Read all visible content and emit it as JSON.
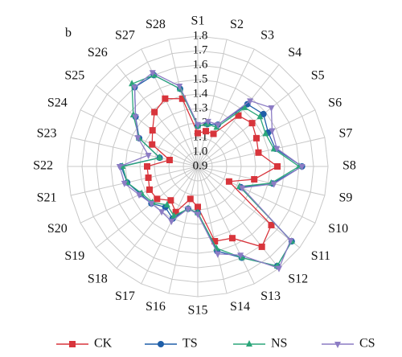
{
  "chart_data": {
    "type": "radar",
    "panel_label": "b",
    "categories": [
      "S1",
      "S2",
      "S3",
      "S4",
      "S5",
      "S6",
      "S7",
      "S8",
      "S9",
      "S10",
      "S11",
      "S12",
      "S13",
      "S14",
      "S15",
      "S16",
      "S17",
      "S18",
      "S19",
      "S20",
      "S21",
      "S22",
      "S23",
      "S24",
      "S25",
      "S26",
      "S27",
      "S28"
    ],
    "rlim": [
      0.9,
      1.8
    ],
    "rticks": [
      0.9,
      {
        "value": 1,
        "label": "1.0"
      },
      1.1,
      1.2,
      1.3,
      1.4,
      1.5,
      1.6,
      1.7,
      1.8
    ],
    "grid": true,
    "legend": "bottom",
    "series": [
      {
        "name": "CK",
        "color": "#d8353c",
        "marker": "square",
        "values": [
          1.13,
          1.15,
          1.15,
          1.35,
          1.38,
          1.35,
          1.33,
          1.45,
          1.3,
          1.14,
          1.55,
          1.61,
          1.45,
          1.43,
          1.18,
          1.13,
          1.25,
          1.2,
          1.26,
          1.27,
          1.25,
          1.25,
          1.1,
          1.25,
          1.3,
          1.38,
          1.42,
          1.38
        ]
      },
      {
        "name": "TS",
        "color": "#1f5fa8",
        "marker": "circle",
        "values": [
          1.18,
          1.2,
          1.22,
          1.45,
          1.48,
          1.44,
          1.45,
          1.62,
          1.43,
          1.23,
          1.73,
          1.78,
          1.6,
          1.5,
          1.22,
          1.2,
          1.3,
          1.26,
          1.31,
          1.34,
          1.4,
          1.43,
          1.17,
          1.35,
          1.45,
          1.6,
          1.6,
          1.45
        ]
      },
      {
        "name": "NS",
        "color": "#2ba67a",
        "marker": "triangle",
        "values": [
          1.18,
          1.2,
          1.2,
          1.42,
          1.45,
          1.42,
          1.44,
          1.6,
          1.42,
          1.22,
          1.73,
          1.78,
          1.6,
          1.48,
          1.22,
          1.2,
          1.28,
          1.24,
          1.3,
          1.33,
          1.4,
          1.42,
          1.17,
          1.35,
          1.47,
          1.63,
          1.6,
          1.45
        ]
      },
      {
        "name": "CS",
        "color": "#8c7cc4",
        "marker": "triangle-down",
        "values": [
          1.19,
          1.22,
          1.22,
          1.48,
          1.55,
          1.47,
          1.46,
          1.62,
          1.44,
          1.24,
          1.72,
          1.8,
          1.58,
          1.52,
          1.23,
          1.2,
          1.32,
          1.3,
          1.31,
          1.35,
          1.42,
          1.44,
          1.25,
          1.36,
          1.45,
          1.6,
          1.62,
          1.47
        ]
      }
    ]
  }
}
